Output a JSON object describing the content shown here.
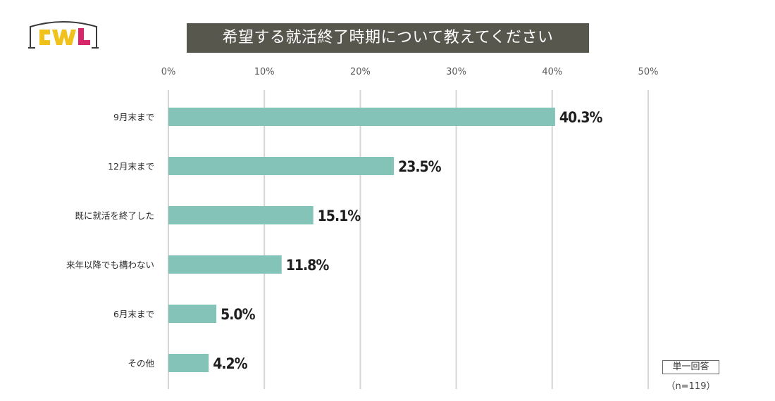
{
  "logo_text": "CWL",
  "title": "希望する就活終了時期について教えてください",
  "chart_data": {
    "type": "bar",
    "orientation": "horizontal",
    "title": "希望する就活終了時期について教えてください",
    "categories": [
      "9月末まで",
      "12月末まで",
      "既に就活を終了した",
      "来年以降でも構わない",
      "6月末まで",
      "その他"
    ],
    "values": [
      40.3,
      23.5,
      15.1,
      11.8,
      5.0,
      4.2
    ],
    "value_labels": [
      "40.3%",
      "23.5%",
      "15.1%",
      "11.8%",
      "5.0%",
      "4.2%"
    ],
    "x_ticks": [
      "0%",
      "10%",
      "20%",
      "30%",
      "40%",
      "50%"
    ],
    "xlim": [
      0,
      50
    ],
    "grid": true,
    "bar_color": "#84c3b8"
  },
  "footer": {
    "answer_type": "単一回答",
    "sample_size": "（n=119）"
  }
}
